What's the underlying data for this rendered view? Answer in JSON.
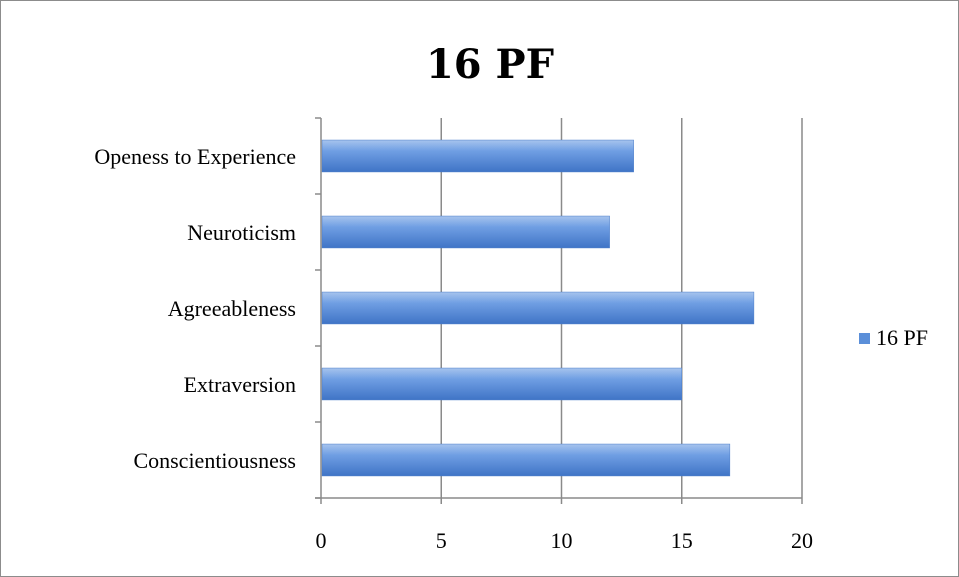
{
  "chart_data": {
    "type": "bar",
    "orientation": "horizontal",
    "title": "16 PF",
    "categories": [
      "Openess to Experience",
      "Neuroticism",
      "Agreeableness",
      "Extraversion",
      "Conscientiousness"
    ],
    "series": [
      {
        "name": "16 PF",
        "values": [
          13,
          12,
          18,
          15,
          17
        ]
      }
    ],
    "xlim": [
      0,
      20
    ],
    "xticks": [
      0,
      5,
      10,
      15,
      20
    ],
    "grid": "vertical",
    "legend_position": "right",
    "bar_color": "#5b8fd9"
  }
}
